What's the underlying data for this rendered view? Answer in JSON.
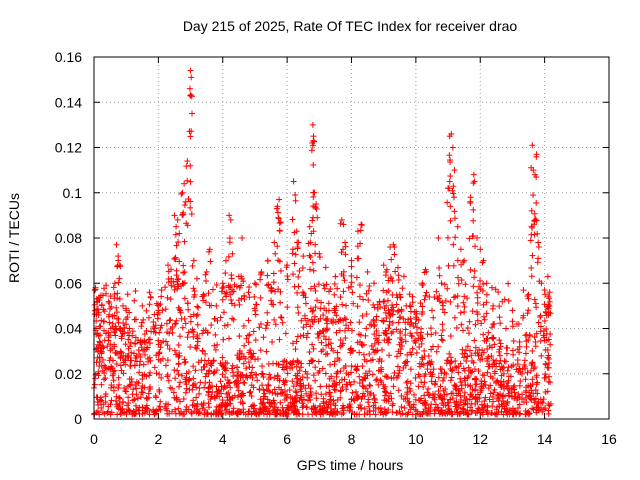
{
  "chart_data": {
    "type": "scatter",
    "title": "Day 215 of 2025, Rate Of TEC Index for receiver drao",
    "xlabel": "GPS time / hours",
    "ylabel": "ROTI / TECUs",
    "xlim": [
      0,
      16
    ],
    "ylim": [
      0,
      0.16
    ],
    "xticks": [
      "0",
      "2",
      "4",
      "6",
      "8",
      "10",
      "12",
      "14",
      "16"
    ],
    "yticks": [
      "0",
      "0.02",
      "0.04",
      "0.06",
      "0.08",
      "0.1",
      "0.12",
      "0.14",
      "0.16"
    ],
    "grid": true,
    "marker": "plus",
    "color": "#ff0000",
    "data_range_x": [
      0,
      14.2
    ],
    "series": [
      {
        "points": [
          [
            0.05,
            0.058
          ],
          [
            0.1,
            0.052
          ],
          [
            0.15,
            0.047
          ],
          [
            0.2,
            0.041
          ],
          [
            0.3,
            0.043
          ],
          [
            0.5,
            0.037
          ],
          [
            0.7,
            0.077
          ],
          [
            0.75,
            0.072
          ],
          [
            0.8,
            0.068
          ],
          [
            0.65,
            0.06
          ],
          [
            0.9,
            0.05
          ],
          [
            1.0,
            0.048
          ],
          [
            1.1,
            0.04
          ],
          [
            1.3,
            0.036
          ],
          [
            1.5,
            0.05
          ],
          [
            1.7,
            0.035
          ],
          [
            2.0,
            0.048
          ],
          [
            2.1,
            0.057
          ],
          [
            2.3,
            0.068
          ],
          [
            2.4,
            0.062
          ],
          [
            2.5,
            0.09
          ],
          [
            2.55,
            0.085
          ],
          [
            2.6,
            0.088
          ],
          [
            2.65,
            0.082
          ],
          [
            2.75,
            0.1
          ],
          [
            2.8,
            0.104
          ],
          [
            2.85,
            0.096
          ],
          [
            2.9,
            0.114
          ],
          [
            3.0,
            0.154
          ],
          [
            3.02,
            0.151
          ],
          [
            2.98,
            0.146
          ],
          [
            3.1,
            0.07
          ],
          [
            3.2,
            0.062
          ],
          [
            3.4,
            0.055
          ],
          [
            3.5,
            0.065
          ],
          [
            3.6,
            0.075
          ],
          [
            3.8,
            0.05
          ],
          [
            4.0,
            0.06
          ],
          [
            4.1,
            0.07
          ],
          [
            4.2,
            0.09
          ],
          [
            4.25,
            0.088
          ],
          [
            4.3,
            0.073
          ],
          [
            4.5,
            0.063
          ],
          [
            4.6,
            0.08
          ],
          [
            4.8,
            0.056
          ],
          [
            5.0,
            0.06
          ],
          [
            5.2,
            0.065
          ],
          [
            5.4,
            0.07
          ],
          [
            5.5,
            0.058
          ],
          [
            5.6,
            0.078
          ],
          [
            5.7,
            0.094
          ],
          [
            5.75,
            0.097
          ],
          [
            5.8,
            0.087
          ],
          [
            6.0,
            0.068
          ],
          [
            6.2,
            0.105
          ],
          [
            6.25,
            0.099
          ],
          [
            6.3,
            0.083
          ],
          [
            6.35,
            0.078
          ],
          [
            6.5,
            0.072
          ],
          [
            6.7,
            0.085
          ],
          [
            6.75,
            0.082
          ],
          [
            6.8,
            0.13
          ],
          [
            6.82,
            0.125
          ],
          [
            6.78,
            0.122
          ],
          [
            6.85,
            0.1
          ],
          [
            6.9,
            0.095
          ],
          [
            7.0,
            0.073
          ],
          [
            7.2,
            0.067
          ],
          [
            7.5,
            0.063
          ],
          [
            7.7,
            0.088
          ],
          [
            7.75,
            0.086
          ],
          [
            7.8,
            0.078
          ],
          [
            8.0,
            0.07
          ],
          [
            8.2,
            0.083
          ],
          [
            8.3,
            0.086
          ],
          [
            8.5,
            0.065
          ],
          [
            8.7,
            0.06
          ],
          [
            9.0,
            0.068
          ],
          [
            9.1,
            0.066
          ],
          [
            9.2,
            0.076
          ],
          [
            9.3,
            0.077
          ],
          [
            9.5,
            0.055
          ],
          [
            9.7,
            0.05
          ],
          [
            10.0,
            0.045
          ],
          [
            10.2,
            0.06
          ],
          [
            10.3,
            0.066
          ],
          [
            10.5,
            0.048
          ],
          [
            10.7,
            0.08
          ],
          [
            10.8,
            0.06
          ],
          [
            11.0,
            0.102
          ],
          [
            11.05,
            0.125
          ],
          [
            11.1,
            0.126
          ],
          [
            11.15,
            0.12
          ],
          [
            11.2,
            0.11
          ],
          [
            11.3,
            0.085
          ],
          [
            11.4,
            0.075
          ],
          [
            11.5,
            0.07
          ],
          [
            11.7,
            0.098
          ],
          [
            11.8,
            0.108
          ],
          [
            11.82,
            0.105
          ],
          [
            11.9,
            0.08
          ],
          [
            12.0,
            0.075
          ],
          [
            12.1,
            0.07
          ],
          [
            12.2,
            0.06
          ],
          [
            12.4,
            0.05
          ],
          [
            12.6,
            0.045
          ],
          [
            12.8,
            0.04
          ],
          [
            13.0,
            0.048
          ],
          [
            13.2,
            0.042
          ],
          [
            13.4,
            0.037
          ],
          [
            13.5,
            0.055
          ],
          [
            13.6,
            0.092
          ],
          [
            13.62,
            0.121
          ],
          [
            13.65,
            0.11
          ],
          [
            13.7,
            0.108
          ],
          [
            13.75,
            0.117
          ],
          [
            13.8,
            0.078
          ],
          [
            13.9,
            0.06
          ],
          [
            14.0,
            0.057
          ],
          [
            14.1,
            0.063
          ],
          [
            14.15,
            0.05
          ]
        ]
      }
    ]
  }
}
